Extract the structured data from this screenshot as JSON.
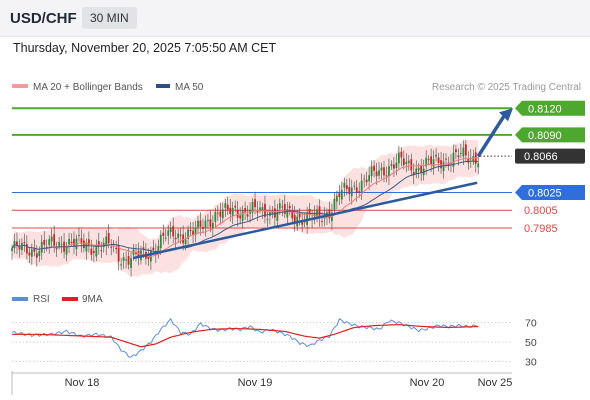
{
  "header": {
    "symbol": "USD/CHF",
    "timeframe": "30 MIN"
  },
  "datetime": "Thursday, November 20, 2025 7:05:50 AM CET",
  "legend": {
    "ma_bollinger": "MA 20 + Bollinger Bands",
    "ma50": "MA 50",
    "credit": "Research © 2025 Trading Central"
  },
  "colors": {
    "green_level": "#4ea72e",
    "blue_level": "#2f6fdb",
    "red_level": "#e04848",
    "current_label_bg": "#333333",
    "arrow": "#2c5a9c",
    "ma50": "#3a5a8a",
    "bollinger_fill": "#f9c8c8",
    "rsi": "#5a8fd8",
    "rsi_ma": "#e02020",
    "candle_up": "#2e8b3a",
    "candle_down": "#c62828"
  },
  "chart_data": [
    {
      "type": "candlestick",
      "title": "USD/CHF",
      "timeframe": "30 MIN",
      "x_labels": [
        "Nov 18",
        "Nov 19",
        "Nov 20",
        "Nov 25"
      ],
      "ylim": [
        0.7915,
        0.8135
      ],
      "current_price": 0.8066,
      "levels": [
        {
          "value": 0.812,
          "label": "0.8120",
          "color": "#4ea72e",
          "kind": "resistance"
        },
        {
          "value": 0.809,
          "label": "0.8090",
          "color": "#4ea72e",
          "kind": "resistance"
        },
        {
          "value": 0.8066,
          "label": "0.8066",
          "color": "#333333",
          "kind": "current"
        },
        {
          "value": 0.8025,
          "label": "0.8025",
          "color": "#2f6fdb",
          "kind": "pivot"
        },
        {
          "value": 0.8005,
          "label": "0.8005",
          "color": "#e04848",
          "kind": "support"
        },
        {
          "value": 0.7985,
          "label": "0.7985",
          "color": "#e04848",
          "kind": "support"
        }
      ],
      "series": [
        {
          "name": "MA 20 + Bollinger Bands"
        },
        {
          "name": "MA 50"
        }
      ],
      "close_path": [
        [
          0,
          0.7962
        ],
        [
          8,
          0.796
        ],
        [
          16,
          0.7966
        ],
        [
          22,
          0.7969
        ],
        [
          28,
          0.7966
        ],
        [
          34,
          0.7964
        ],
        [
          40,
          0.7965
        ],
        [
          44,
          0.7952
        ],
        [
          48,
          0.795
        ],
        [
          54,
          0.7956
        ],
        [
          58,
          0.7964
        ],
        [
          62,
          0.7975
        ],
        [
          66,
          0.7979
        ],
        [
          70,
          0.7977
        ],
        [
          74,
          0.798
        ],
        [
          78,
          0.7992
        ],
        [
          82,
          0.8
        ],
        [
          86,
          0.8002
        ],
        [
          90,
          0.8006
        ],
        [
          94,
          0.8003
        ],
        [
          98,
          0.8004
        ],
        [
          104,
          0.8004
        ],
        [
          108,
          0.8004
        ],
        [
          112,
          0.8
        ],
        [
          116,
          0.7998
        ],
        [
          120,
          0.7995
        ],
        [
          124,
          0.7997
        ],
        [
          128,
          0.8005
        ],
        [
          132,
          0.8022
        ],
        [
          136,
          0.8028
        ],
        [
          140,
          0.8035
        ],
        [
          144,
          0.8042
        ],
        [
          148,
          0.8048
        ],
        [
          152,
          0.8055
        ],
        [
          156,
          0.806
        ],
        [
          160,
          0.8055
        ],
        [
          164,
          0.8053
        ],
        [
          168,
          0.8057
        ],
        [
          172,
          0.806
        ],
        [
          176,
          0.8063
        ],
        [
          180,
          0.8066
        ],
        [
          184,
          0.8065
        ],
        [
          188,
          0.8066
        ]
      ],
      "annotation": "Projected move up to 0.8120"
    },
    {
      "type": "line",
      "title": "RSI",
      "series": [
        {
          "name": "RSI"
        },
        {
          "name": "9MA"
        }
      ],
      "ylim": [
        20,
        80
      ],
      "y_ticks": [
        70,
        50,
        30
      ],
      "rsi_path": [
        [
          0,
          60
        ],
        [
          8,
          57
        ],
        [
          16,
          58
        ],
        [
          22,
          61
        ],
        [
          28,
          56
        ],
        [
          34,
          58
        ],
        [
          40,
          55
        ],
        [
          44,
          42
        ],
        [
          48,
          34
        ],
        [
          52,
          41
        ],
        [
          56,
          50
        ],
        [
          60,
          63
        ],
        [
          64,
          73
        ],
        [
          68,
          60
        ],
        [
          72,
          58
        ],
        [
          76,
          69
        ],
        [
          80,
          64
        ],
        [
          84,
          62
        ],
        [
          88,
          64
        ],
        [
          92,
          63
        ],
        [
          96,
          66
        ],
        [
          100,
          60
        ],
        [
          104,
          63
        ],
        [
          108,
          60
        ],
        [
          112,
          56
        ],
        [
          116,
          49
        ],
        [
          120,
          46
        ],
        [
          124,
          52
        ],
        [
          128,
          56
        ],
        [
          132,
          73
        ],
        [
          136,
          69
        ],
        [
          140,
          66
        ],
        [
          144,
          65
        ],
        [
          148,
          63
        ],
        [
          152,
          72
        ],
        [
          156,
          70
        ],
        [
          160,
          66
        ],
        [
          164,
          62
        ],
        [
          168,
          64
        ],
        [
          172,
          67
        ],
        [
          176,
          66
        ],
        [
          180,
          67
        ],
        [
          184,
          66
        ],
        [
          188,
          67
        ]
      ],
      "ma_path": [
        [
          0,
          58
        ],
        [
          10,
          58
        ],
        [
          20,
          57
        ],
        [
          30,
          56
        ],
        [
          40,
          55
        ],
        [
          46,
          50
        ],
        [
          52,
          45
        ],
        [
          58,
          48
        ],
        [
          64,
          55
        ],
        [
          72,
          60
        ],
        [
          80,
          63
        ],
        [
          90,
          64
        ],
        [
          100,
          63
        ],
        [
          110,
          61
        ],
        [
          118,
          56
        ],
        [
          124,
          54
        ],
        [
          130,
          58
        ],
        [
          138,
          65
        ],
        [
          146,
          67
        ],
        [
          156,
          68
        ],
        [
          166,
          66
        ],
        [
          176,
          65
        ],
        [
          188,
          66
        ]
      ]
    }
  ]
}
